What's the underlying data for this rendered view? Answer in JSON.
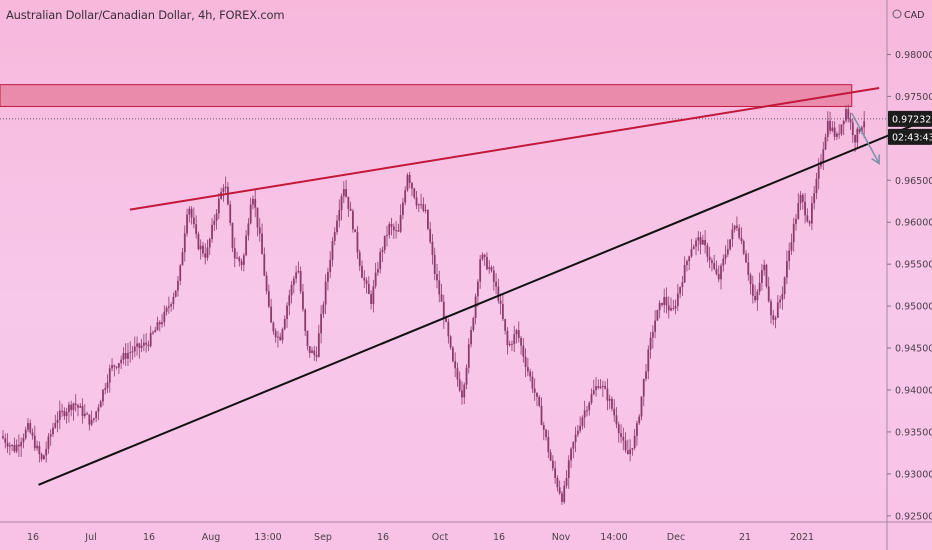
{
  "header": {
    "title": "Australian Dollar/Canadian Dollar, 4h, FOREX.com"
  },
  "price_axis": {
    "currency": "CAD",
    "current_price": "0.97232",
    "countdown": "02:43:43"
  },
  "colors": {
    "background_top": "#f7b8dc",
    "background_bottom": "#f8c2e6",
    "candle": "#8c3a6b",
    "red_line": "#c2183a",
    "black_line": "#111111",
    "zone_fill": "#e57b9a",
    "zone_stroke": "#c2183a",
    "arrow": "#7a8fa8",
    "price_tag": "#1c1c1c"
  },
  "chart_data": {
    "type": "candlestick",
    "symbol": "Australian Dollar/Canadian Dollar",
    "interval": "4h",
    "source": "FOREX.com",
    "y_ticks": [
      0.925,
      0.93,
      0.935,
      0.94,
      0.945,
      0.95,
      0.955,
      0.96,
      0.965,
      0.97,
      0.975,
      0.98
    ],
    "y_tick_labels": [
      "0.92500",
      "0.93000",
      "0.93500",
      "0.94000",
      "0.94500",
      "0.95000",
      "0.95500",
      "0.96000",
      "0.96500",
      "0.97000",
      "0.97500",
      "0.98000"
    ],
    "ylim": [
      0.9245,
      0.9853
    ],
    "x_ticks": [
      "16",
      "Jul",
      "16",
      "Aug",
      "13:00",
      "Sep",
      "16",
      "Oct",
      "16",
      "Nov",
      "14:00",
      "Dec",
      "21",
      "2021"
    ],
    "current_price": 0.97232,
    "price_path": [
      [
        0,
        0.9345
      ],
      [
        3,
        0.933
      ],
      [
        6,
        0.9355
      ],
      [
        9,
        0.9315
      ],
      [
        12,
        0.9365
      ],
      [
        16,
        0.9385
      ],
      [
        20,
        0.936
      ],
      [
        24,
        0.9425
      ],
      [
        28,
        0.9445
      ],
      [
        32,
        0.9455
      ],
      [
        36,
        0.949
      ],
      [
        39,
        0.953
      ],
      [
        41,
        0.9625
      ],
      [
        43,
        0.9575
      ],
      [
        45,
        0.956
      ],
      [
        47,
        0.961
      ],
      [
        49,
        0.965
      ],
      [
        51,
        0.956
      ],
      [
        53,
        0.955
      ],
      [
        55,
        0.964
      ],
      [
        57,
        0.957
      ],
      [
        59,
        0.948
      ],
      [
        61,
        0.946
      ],
      [
        63,
        0.951
      ],
      [
        65,
        0.955
      ],
      [
        67,
        0.945
      ],
      [
        69,
        0.944
      ],
      [
        71,
        0.952
      ],
      [
        73,
        0.959
      ],
      [
        75,
        0.9645
      ],
      [
        77,
        0.96
      ],
      [
        79,
        0.954
      ],
      [
        81,
        0.9505
      ],
      [
        83,
        0.956
      ],
      [
        85,
        0.9595
      ],
      [
        87,
        0.9585
      ],
      [
        89,
        0.966
      ],
      [
        91,
        0.9625
      ],
      [
        93,
        0.961
      ],
      [
        95,
        0.954
      ],
      [
        97,
        0.949
      ],
      [
        99,
        0.943
      ],
      [
        101,
        0.9395
      ],
      [
        103,
        0.947
      ],
      [
        105,
        0.956
      ],
      [
        107,
        0.9545
      ],
      [
        109,
        0.951
      ],
      [
        111,
        0.945
      ],
      [
        113,
        0.947
      ],
      [
        115,
        0.943
      ],
      [
        117,
        0.9395
      ],
      [
        119,
        0.935
      ],
      [
        121,
        0.93
      ],
      [
        123,
        0.927
      ],
      [
        125,
        0.933
      ],
      [
        127,
        0.9365
      ],
      [
        129,
        0.939
      ],
      [
        131,
        0.941
      ],
      [
        133,
        0.939
      ],
      [
        135,
        0.936
      ],
      [
        137,
        0.932
      ],
      [
        139,
        0.9345
      ],
      [
        141,
        0.942
      ],
      [
        143,
        0.948
      ],
      [
        145,
        0.951
      ],
      [
        147,
        0.949
      ],
      [
        149,
        0.953
      ],
      [
        151,
        0.957
      ],
      [
        153,
        0.958
      ],
      [
        155,
        0.956
      ],
      [
        157,
        0.953
      ],
      [
        159,
        0.957
      ],
      [
        161,
        0.96
      ],
      [
        163,
        0.956
      ],
      [
        165,
        0.95
      ],
      [
        167,
        0.955
      ],
      [
        169,
        0.948
      ],
      [
        171,
        0.9515
      ],
      [
        173,
        0.958
      ],
      [
        175,
        0.963
      ],
      [
        177,
        0.96
      ],
      [
        179,
        0.966
      ],
      [
        181,
        0.972
      ],
      [
        183,
        0.97
      ],
      [
        185,
        0.9735
      ],
      [
        187,
        0.97
      ],
      [
        189,
        0.9723
      ]
    ],
    "annotations": {
      "resistance_zone": {
        "y_range": [
          0.9738,
          0.9764
        ],
        "x_range": [
          0,
          186
        ]
      },
      "red_trendline": {
        "from": [
          28,
          0.9615
        ],
        "to": [
          192,
          0.976
        ]
      },
      "black_trendline": {
        "from": [
          8,
          0.9287
        ],
        "to": [
          205,
          0.9728
        ]
      },
      "arrow": {
        "from": [
          186,
          0.973
        ],
        "to": [
          192,
          0.967
        ]
      },
      "current_price_line": 0.97232
    }
  }
}
